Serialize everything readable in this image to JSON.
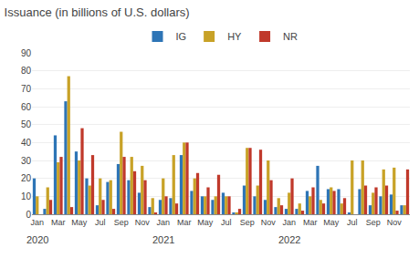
{
  "chart_data": {
    "type": "bar",
    "title": "Issuance (in billions of U.S. dollars)",
    "categories": [
      "Jan",
      null,
      "Mar",
      null,
      "May",
      null,
      "Jul",
      null,
      "Sep",
      null,
      "Nov",
      null,
      "Jan",
      null,
      "Mar",
      null,
      "May",
      null,
      "Jul",
      null,
      "Sep",
      null,
      "Nov",
      null,
      "Jan",
      null,
      "Mar",
      null,
      "May",
      null,
      "Jul",
      null,
      "Sep",
      null,
      "Nov",
      null
    ],
    "annotations": [
      {
        "text": "2020",
        "x": 0
      },
      {
        "text": "2021",
        "x": 12
      },
      {
        "text": "2022",
        "x": 24
      }
    ],
    "series": [
      {
        "name": "IG",
        "color": "#2e75b6",
        "values": [
          20,
          3,
          44,
          63,
          35,
          20,
          5,
          18,
          28,
          19,
          12,
          4,
          8,
          9,
          33,
          13,
          10,
          8,
          12,
          1,
          16,
          10,
          8,
          4,
          3,
          3,
          13,
          27,
          14,
          14,
          1,
          14,
          5,
          10,
          11,
          5
        ]
      },
      {
        "name": "HY",
        "color": "#c8a227",
        "values": [
          10,
          15,
          29,
          77,
          30,
          16,
          20,
          19,
          46,
          32,
          27,
          9,
          20,
          33,
          40,
          20,
          10,
          10,
          10,
          1,
          37,
          16,
          30,
          9,
          12,
          6,
          10,
          8,
          15,
          6,
          30,
          30,
          12,
          25,
          26,
          5
        ]
      },
      {
        "name": "NR",
        "color": "#c0392b",
        "values": [
          0,
          8,
          32,
          4,
          48,
          33,
          8,
          3,
          32,
          24,
          19,
          1,
          10,
          6,
          40,
          23,
          15,
          22,
          10,
          3,
          37,
          36,
          19,
          5,
          20,
          2,
          15,
          6,
          13,
          9,
          0,
          16,
          15,
          16,
          2,
          25
        ]
      }
    ],
    "ylim": [
      0,
      90
    ],
    "yticks": [
      0,
      10,
      20,
      30,
      40,
      50,
      60,
      70,
      80,
      90
    ],
    "grid": true,
    "legend": "top"
  }
}
